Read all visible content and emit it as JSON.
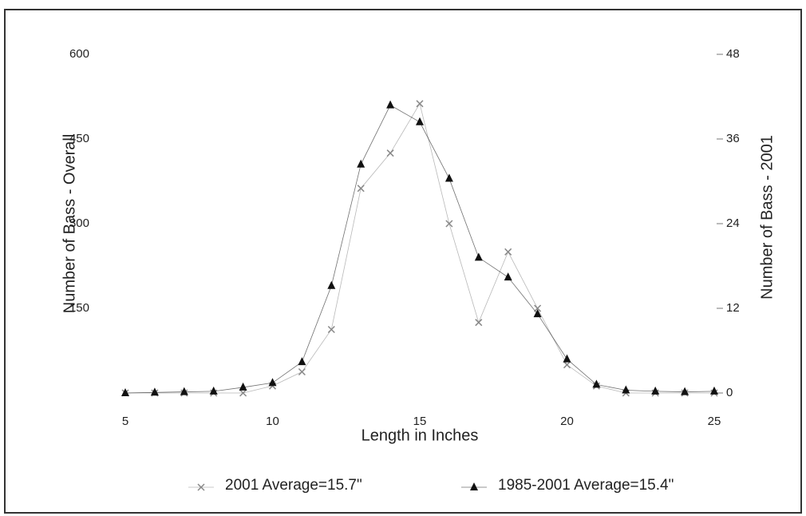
{
  "chart_data": {
    "type": "line",
    "x_label": "Length in Inches",
    "y_label": "Number of Bass - Overall",
    "y2_label": "Number of Bass - 2001",
    "x": [
      5,
      6,
      7,
      8,
      9,
      10,
      11,
      12,
      13,
      14,
      15,
      16,
      17,
      18,
      19,
      20,
      21,
      22,
      23,
      24,
      25
    ],
    "xlim": [
      5,
      25
    ],
    "xticks": [
      5,
      10,
      15,
      20,
      25
    ],
    "ylim": [
      0,
      600
    ],
    "yticks": [
      150,
      300,
      450,
      600
    ],
    "y2lim": [
      0,
      48
    ],
    "y2ticks": [
      0,
      12,
      24,
      36,
      48
    ],
    "series": [
      {
        "name": "2001 Average=15.7\"",
        "color": "#888888",
        "marker": "x",
        "axis": "y2",
        "values": [
          0,
          0,
          0,
          0,
          0,
          1,
          3,
          9,
          29,
          34,
          41,
          24,
          10,
          20,
          12,
          4,
          1,
          0,
          0,
          0,
          0
        ]
      },
      {
        "name": "1985-2001 Average=15.4\"",
        "color": "#111111",
        "marker": "triangle",
        "axis": "y",
        "values": [
          0,
          1,
          2,
          3,
          10,
          18,
          55,
          190,
          405,
          510,
          480,
          380,
          240,
          205,
          140,
          60,
          15,
          5,
          3,
          2,
          3
        ]
      }
    ]
  }
}
